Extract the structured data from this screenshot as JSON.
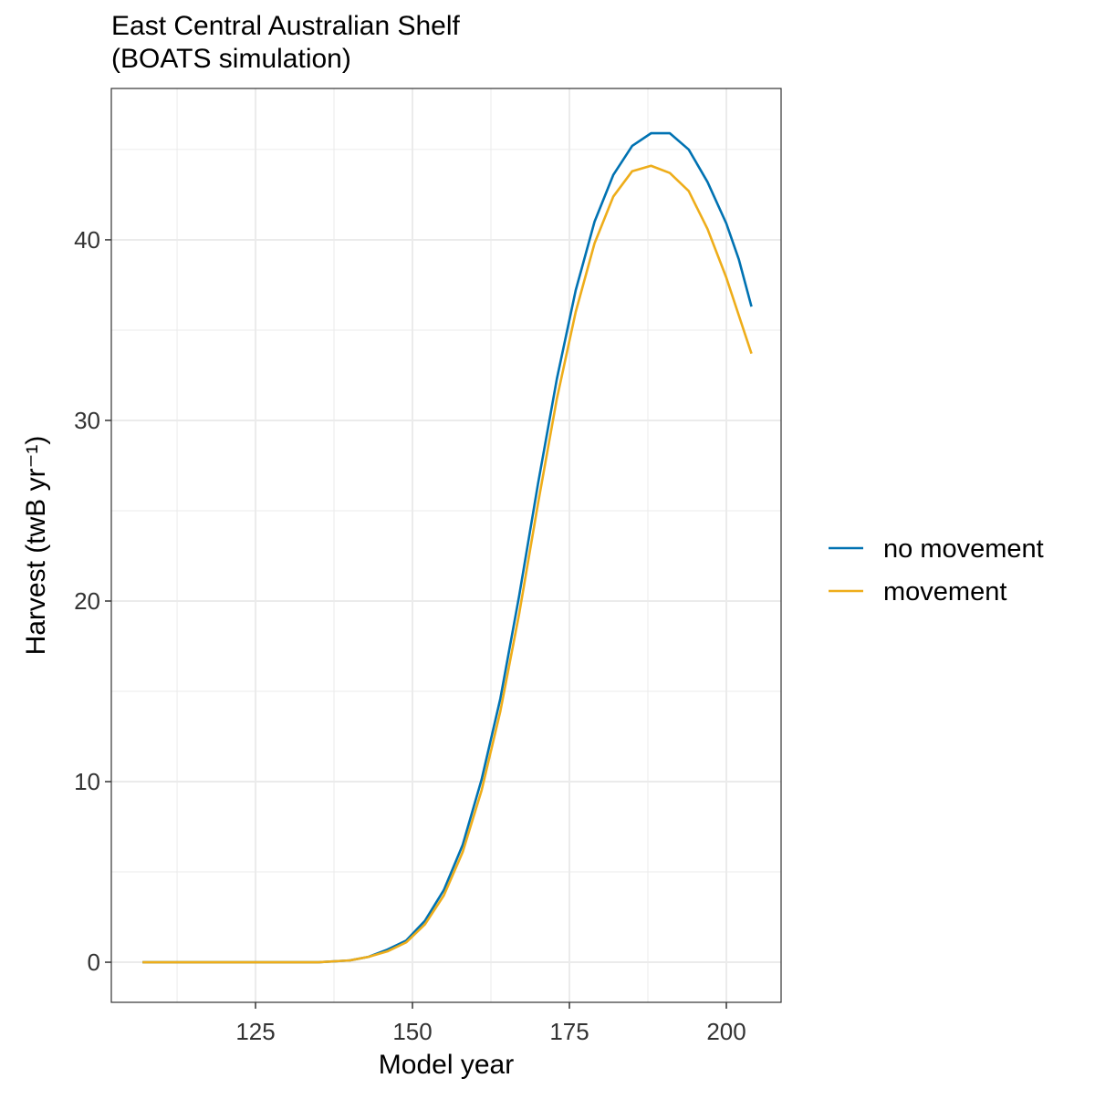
{
  "chart_data": {
    "type": "line",
    "title": "East Central Australian Shelf",
    "subtitle": "(BOATS simulation)",
    "x_label": "Model year",
    "y_label": "Harvest (twB yr⁻¹)",
    "x": [
      107,
      115,
      125,
      135,
      140,
      143,
      146,
      149,
      152,
      155,
      158,
      161,
      164,
      167,
      170,
      173,
      176,
      179,
      182,
      185,
      188,
      191,
      194,
      197,
      200,
      202,
      204
    ],
    "series": [
      {
        "name": "no movement",
        "color": "#0072B2",
        "values": [
          0,
          0,
          0,
          0,
          0.1,
          0.3,
          0.7,
          1.2,
          2.3,
          4.0,
          6.5,
          10.1,
          14.6,
          20.3,
          26.5,
          32.3,
          37.2,
          41.0,
          43.6,
          45.2,
          45.9,
          45.9,
          45.0,
          43.2,
          40.9,
          38.9,
          36.3
        ]
      },
      {
        "name": "movement",
        "color": "#EEAD1A",
        "values": [
          0,
          0,
          0,
          0,
          0.1,
          0.3,
          0.6,
          1.1,
          2.1,
          3.7,
          6.1,
          9.5,
          13.9,
          19.3,
          25.4,
          31.2,
          36.0,
          39.8,
          42.4,
          43.8,
          44.1,
          43.7,
          42.7,
          40.6,
          37.9,
          35.8,
          33.7
        ]
      }
    ],
    "xlim": [
      102.03,
      208.72
    ],
    "ylim": [
      -2.22,
      48.38
    ],
    "xticks": [
      125,
      150,
      175,
      200
    ],
    "yticks": [
      0,
      10,
      20,
      30,
      40
    ],
    "x_minor_ticks": [
      112.5,
      137.5,
      162.5,
      187.5
    ],
    "y_minor_ticks": [
      5,
      15,
      25,
      35,
      45
    ],
    "grid": true,
    "legend": "right"
  }
}
